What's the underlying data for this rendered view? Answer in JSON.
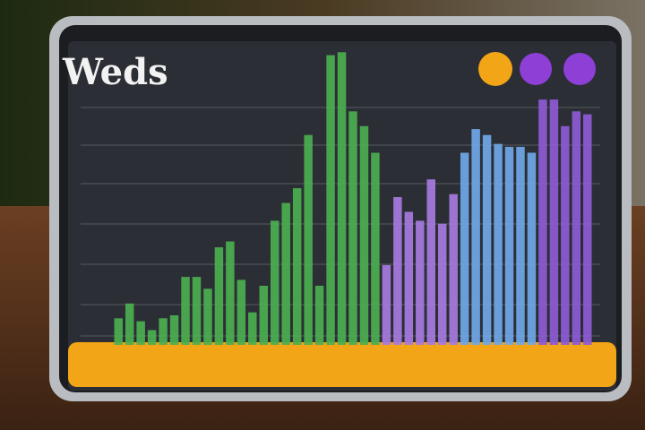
{
  "chart_data": {
    "type": "bar",
    "title": "Weds",
    "ylim": [
      0,
      100
    ],
    "series": [
      {
        "color": "#4caf50",
        "values": [
          9,
          14,
          8,
          5,
          9,
          10,
          23,
          23,
          19,
          33,
          35,
          22,
          11,
          20,
          42,
          48,
          53,
          71,
          20,
          98,
          99,
          79,
          74,
          65
        ]
      },
      {
        "color": "#a77be0",
        "values": [
          27,
          50,
          45,
          42,
          56,
          41,
          51
        ]
      },
      {
        "color": "#6fa8e8",
        "values": [
          65,
          73,
          71,
          68,
          67,
          67,
          65
        ]
      },
      {
        "color": "#8e5bd6",
        "values": [
          83,
          83,
          74,
          79,
          78
        ]
      }
    ]
  }
}
